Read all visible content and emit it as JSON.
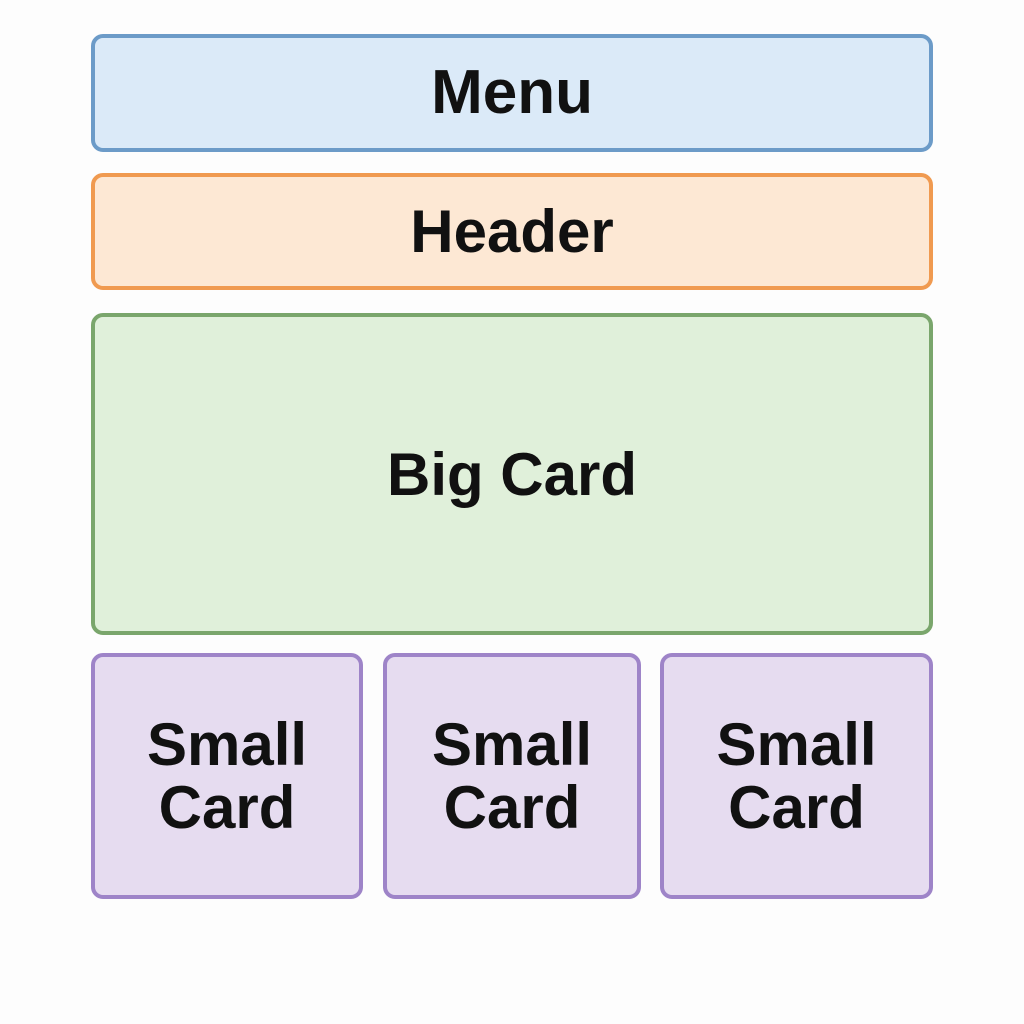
{
  "menu": {
    "label": "Menu"
  },
  "header": {
    "label": "Header"
  },
  "big_card": {
    "label": "Big Card"
  },
  "small_cards": [
    {
      "line1": "Small",
      "line2": "Card"
    },
    {
      "line1": "Small",
      "line2": "Card"
    },
    {
      "line1": "Small",
      "line2": "Card"
    }
  ],
  "colors": {
    "menu_fill": "#dbeaf8",
    "menu_border": "#6c9bc8",
    "header_fill": "#fde8d4",
    "header_border": "#f09a50",
    "big_card_fill": "#e0f0da",
    "big_card_border": "#7aa66c",
    "small_card_fill": "#e6dcf0",
    "small_card_border": "#9e84c8"
  }
}
